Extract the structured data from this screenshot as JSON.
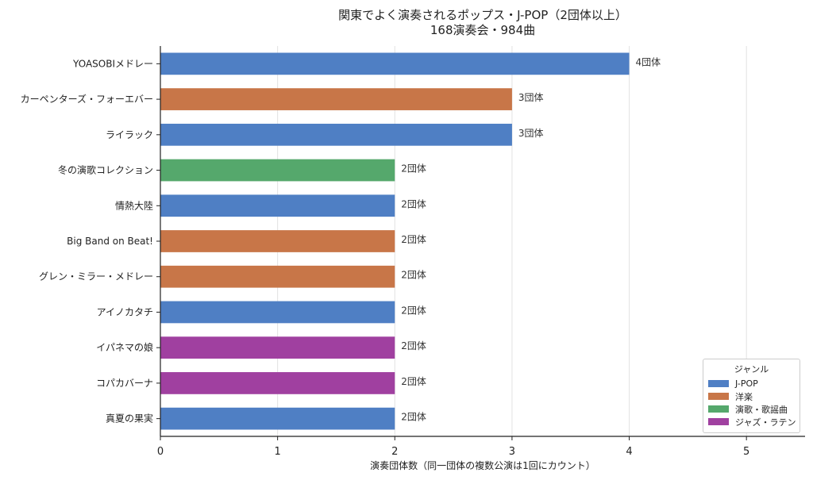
{
  "title_line1": "関東でよく演奏されるポップス・J-POP（2団体以上）",
  "title_line2": "168演奏会・984曲",
  "chart_data": {
    "type": "bar",
    "orientation": "horizontal",
    "title": "関東でよく演奏されるポップス・J-POP（2団体以上）\n168演奏会・984曲",
    "xlabel": "演奏団体数（同一団体の複数公演は1回にカウント）",
    "ylabel": "",
    "xlim": [
      0,
      5.5
    ],
    "xticks": [
      "0",
      "1",
      "2",
      "3",
      "4",
      "5"
    ],
    "grid": "vertical",
    "legend_position": "bottom-right",
    "categories": [
      "YOASOBIメドレー",
      "カーペンターズ・フォーエバー",
      "ライラック",
      "冬の演歌コレクション",
      "情熱大陸",
      "Big Band on Beat!",
      "グレン・ミラー・メドレー",
      "アイノカタチ",
      "イパネマの娘",
      "コパカバーナ",
      "真夏の果実"
    ],
    "values": [
      4,
      3,
      3,
      2,
      2,
      2,
      2,
      2,
      2,
      2,
      2
    ],
    "value_labels": [
      "4団体",
      "3団体",
      "3団体",
      "2団体",
      "2団体",
      "2団体",
      "2団体",
      "2団体",
      "2団体",
      "2団体",
      "2団体"
    ],
    "genres": [
      "J-POP",
      "洋楽",
      "J-POP",
      "演歌・歌謡曲",
      "J-POP",
      "洋楽",
      "洋楽",
      "J-POP",
      "ジャズ・ラテン",
      "ジャズ・ラテン",
      "J-POP"
    ],
    "legend_title": "ジャンル",
    "legend": [
      {
        "name": "J-POP",
        "color": "#4f7fc4"
      },
      {
        "name": "洋楽",
        "color": "#c87648"
      },
      {
        "name": "演歌・歌謡曲",
        "color": "#55a86c"
      },
      {
        "name": "ジャズ・ラテン",
        "color": "#a040a0"
      }
    ]
  }
}
